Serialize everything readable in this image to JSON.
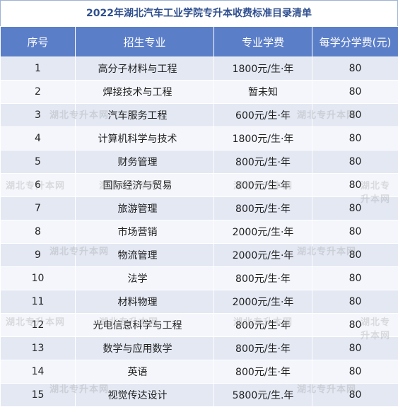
{
  "title": "2022年湖北汽车工业学院专升本收费标准目录清单",
  "headers": [
    "序号",
    "招生专业",
    "专业学费",
    "每学分学费(元)"
  ],
  "rows": [
    {
      "no": "1",
      "major": "高分子材料与工程",
      "fee": "1800元/生·年",
      "credit": "80"
    },
    {
      "no": "2",
      "major": "焊接技术与工程",
      "fee": "暂未知",
      "credit": "80"
    },
    {
      "no": "3",
      "major": "汽车服务工程",
      "fee": "600元/生·年",
      "credit": "80"
    },
    {
      "no": "4",
      "major": "计算机科学与技术",
      "fee": "1800元/生·年",
      "credit": "80"
    },
    {
      "no": "5",
      "major": "财务管理",
      "fee": "800元/生·年",
      "credit": "80"
    },
    {
      "no": "6",
      "major": "国际经济与贸易",
      "fee": "800元/生·年",
      "credit": "80"
    },
    {
      "no": "7",
      "major": "旅游管理",
      "fee": "800元/生·年",
      "credit": "80"
    },
    {
      "no": "8",
      "major": "市场营销",
      "fee": "2000元/生·年",
      "credit": "80"
    },
    {
      "no": "9",
      "major": "物流管理",
      "fee": "2000元/生·年",
      "credit": "80"
    },
    {
      "no": "10",
      "major": "法学",
      "fee": "800元/生·年",
      "credit": "80"
    },
    {
      "no": "11",
      "major": "材料物理",
      "fee": "2000元/生·年",
      "credit": "80"
    },
    {
      "no": "12",
      "major": "光电信息科学与工程",
      "fee": "800元/生·年",
      "credit": "80"
    },
    {
      "no": "13",
      "major": "数学与应用数学",
      "fee": "800元/生·年",
      "credit": "80"
    },
    {
      "no": "14",
      "major": "英语",
      "fee": "800元/生·年",
      "credit": "80"
    },
    {
      "no": "15",
      "major": "视觉传达设计",
      "fee": "5800元/生.年",
      "credit": "80"
    }
  ],
  "watermark": "湖北专升本网"
}
